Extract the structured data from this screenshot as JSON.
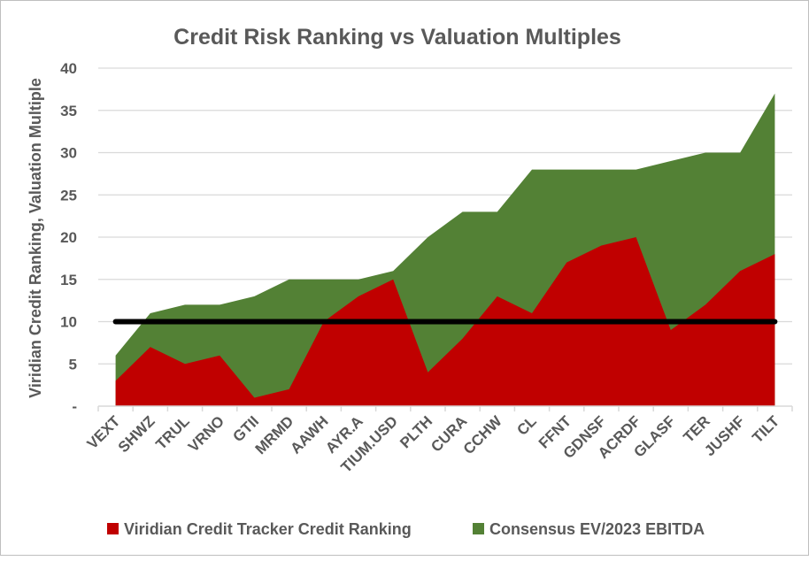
{
  "chart_data": {
    "type": "area",
    "title": "Credit Risk Ranking vs  Valuation Multiples",
    "ylabel": "Viridian Credit Ranking, Valuation Multiple",
    "xlabel": "",
    "ylim": [
      0,
      40
    ],
    "y_ticks": [
      0,
      5,
      10,
      15,
      20,
      25,
      30,
      35,
      40
    ],
    "y_tick_labels": [
      "-",
      "5",
      "10",
      "15",
      "20",
      "25",
      "30",
      "35",
      "40"
    ],
    "categories": [
      "VEXT",
      "SHWZ",
      "TRUL",
      "VRNO",
      "GTII",
      "MRMD",
      "AAWH",
      "AYR.A",
      "TIUM.USD",
      "PLTH",
      "CURA",
      "CCHW",
      "CL",
      "FFNT",
      "GDNSF",
      "ACRDF",
      "GLASF",
      "TER",
      "JUSHF",
      "TILT"
    ],
    "series": [
      {
        "name": "Viridian Credit Tracker Credit Ranking",
        "color": "#c00000",
        "values": [
          3,
          7,
          5,
          6,
          1,
          2,
          10,
          13,
          15,
          4,
          8,
          13,
          11,
          17,
          19,
          20,
          9,
          12,
          16,
          18
        ]
      },
      {
        "name": "Consensus EV/2023 EBITDA",
        "color": "#538135",
        "values": [
          6,
          11,
          12,
          12,
          13,
          15,
          15,
          15,
          16,
          20,
          23,
          23,
          28,
          28,
          28,
          28,
          29,
          30,
          30,
          37
        ]
      }
    ],
    "reference_line": {
      "value": 10,
      "color": "#000000"
    },
    "grid": true,
    "legend_position": "bottom"
  }
}
